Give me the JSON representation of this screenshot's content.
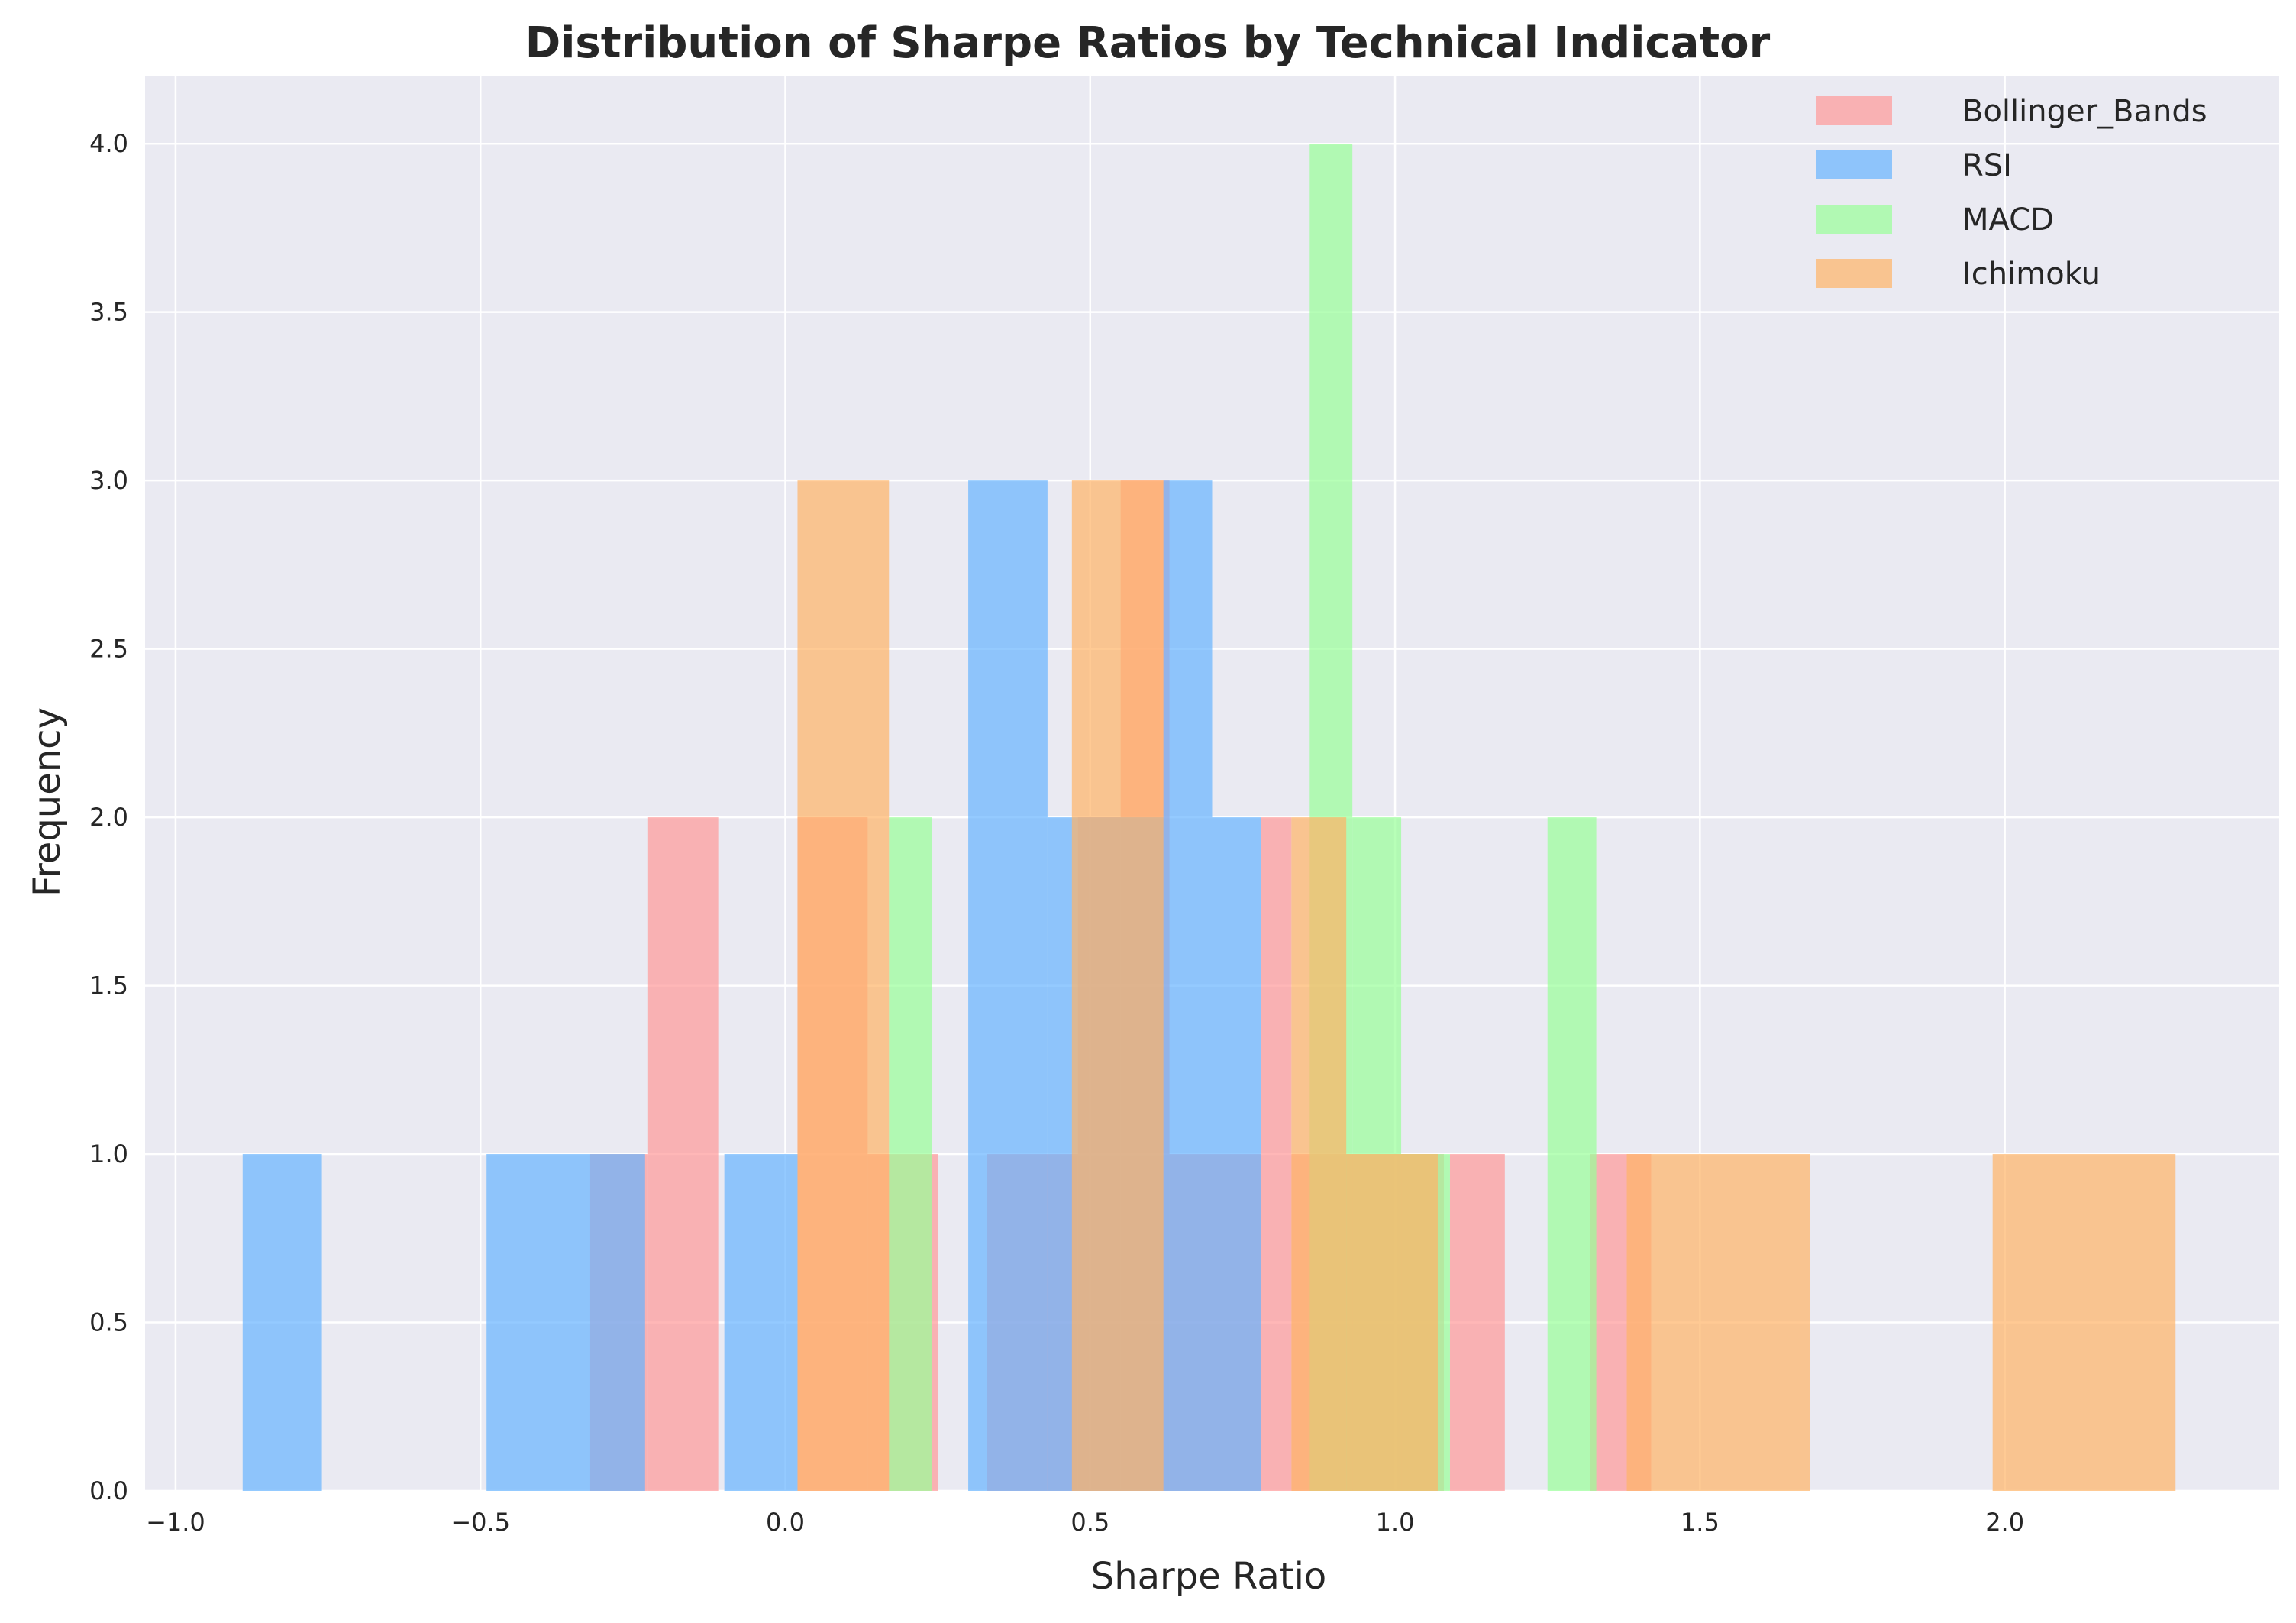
{
  "chart_data": {
    "type": "bar",
    "subtype": "overlapping-histogram",
    "title": "Distribution of Sharpe Ratios by Technical Indicator",
    "xlabel": "Sharpe Ratio",
    "ylabel": "Frequency",
    "xlim": [
      -1.05,
      2.45
    ],
    "ylim": [
      0,
      4.2
    ],
    "xticks": [
      -1.0,
      -0.5,
      0.0,
      0.5,
      1.0,
      1.5,
      2.0
    ],
    "xtick_labels": [
      "−1.0",
      "−0.5",
      "0.0",
      "0.5",
      "1.0",
      "1.5",
      "2.0"
    ],
    "yticks": [
      0,
      0.5,
      1,
      1.5,
      2,
      2.5,
      3,
      3.5,
      4
    ],
    "ytick_labels": [
      "0.0",
      "0.5",
      "1.0",
      "1.5",
      "2.0",
      "2.5",
      "3.0",
      "3.5",
      "4.0"
    ],
    "grid": true,
    "legend_position": "top-right",
    "bar_opacity": 0.7,
    "colors": {
      "background": "#EAEAF2",
      "grid": "#FFFFFF",
      "text": "#262626"
    },
    "series": [
      {
        "name": "Bollinger_Bands",
        "color": "#FF9999",
        "bins": [
          {
            "x0": -0.32,
            "x1": -0.225,
            "count": 1
          },
          {
            "x0": -0.225,
            "x1": -0.11,
            "count": 2
          },
          {
            "x0": 0.02,
            "x1": 0.135,
            "count": 2
          },
          {
            "x0": 0.135,
            "x1": 0.25,
            "count": 1
          },
          {
            "x0": 0.33,
            "x1": 0.48,
            "count": 1
          },
          {
            "x0": 0.48,
            "x1": 0.55,
            "count": 2
          },
          {
            "x0": 0.55,
            "x1": 0.63,
            "count": 3
          },
          {
            "x0": 0.63,
            "x1": 0.78,
            "count": 1
          },
          {
            "x0": 0.78,
            "x1": 0.83,
            "count": 2
          },
          {
            "x0": 0.83,
            "x1": 1.08,
            "count": 1
          },
          {
            "x0": 1.09,
            "x1": 1.18,
            "count": 1
          },
          {
            "x0": 1.32,
            "x1": 1.42,
            "count": 1
          }
        ]
      },
      {
        "name": "RSI",
        "color": "#66B3FF",
        "bins": [
          {
            "x0": -0.89,
            "x1": -0.76,
            "count": 1
          },
          {
            "x0": -0.49,
            "x1": -0.23,
            "count": 1
          },
          {
            "x0": -0.1,
            "x1": 0.02,
            "count": 1
          },
          {
            "x0": 0.3,
            "x1": 0.43,
            "count": 3
          },
          {
            "x0": 0.43,
            "x1": 0.62,
            "count": 2
          },
          {
            "x0": 0.62,
            "x1": 0.7,
            "count": 3
          },
          {
            "x0": 0.7,
            "x1": 0.78,
            "count": 2
          }
        ]
      },
      {
        "name": "MACD",
        "color": "#99FF99",
        "bins": [
          {
            "x0": 0.17,
            "x1": 0.24,
            "count": 2
          },
          {
            "x0": 0.86,
            "x1": 0.93,
            "count": 4
          },
          {
            "x0": 0.93,
            "x1": 1.01,
            "count": 2
          },
          {
            "x0": 1.01,
            "x1": 1.09,
            "count": 1
          },
          {
            "x0": 1.25,
            "x1": 1.33,
            "count": 2
          }
        ]
      },
      {
        "name": "Ichimoku",
        "color": "#FFB366",
        "bins": [
          {
            "x0": 0.02,
            "x1": 0.17,
            "count": 3
          },
          {
            "x0": 0.47,
            "x1": 0.62,
            "count": 3
          },
          {
            "x0": 0.83,
            "x1": 0.92,
            "count": 2
          },
          {
            "x0": 0.92,
            "x1": 1.07,
            "count": 1
          },
          {
            "x0": 1.38,
            "x1": 1.68,
            "count": 1
          },
          {
            "x0": 1.98,
            "x1": 2.28,
            "count": 1
          }
        ]
      }
    ]
  }
}
